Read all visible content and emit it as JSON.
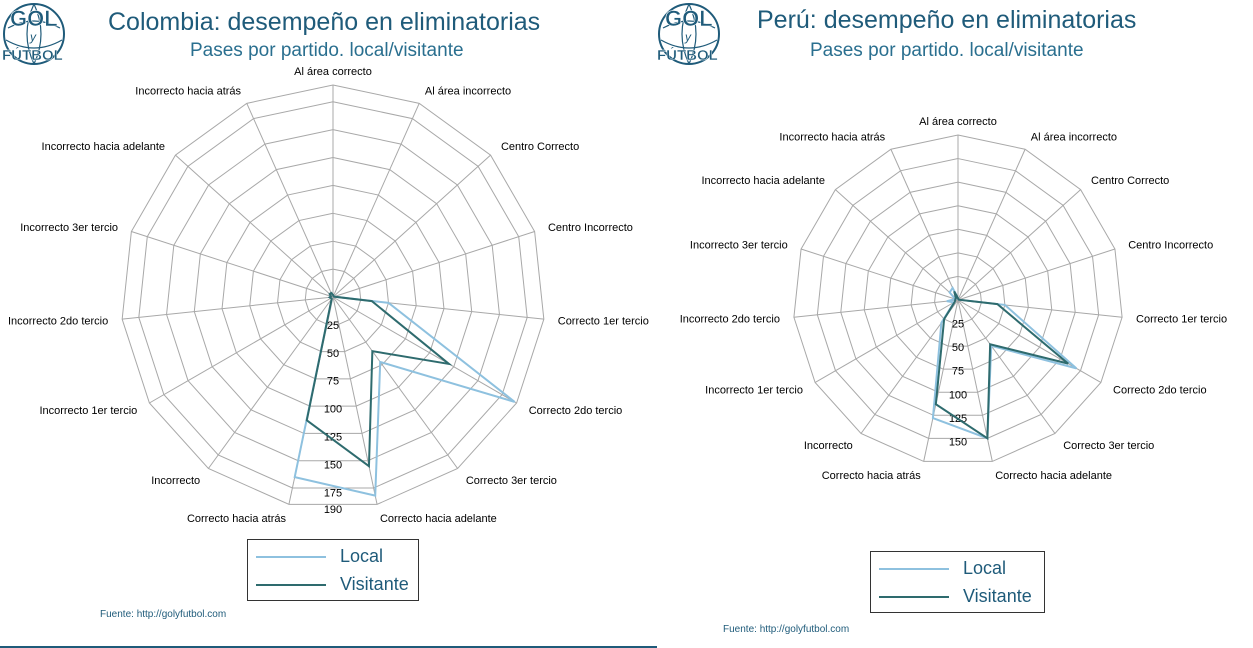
{
  "charts": [
    {
      "title": "Colombia: desempeño en eliminatorias",
      "subtitle": "Pases por partido. local/visitante",
      "logo": {
        "line1": "GOL",
        "line2": "y",
        "line3": "FÚTBOL"
      },
      "legend": [
        "Local",
        "Visitante"
      ],
      "source": "Fuente: http://golyfutbol.com",
      "colors": {
        "local": "#8ec1df",
        "visitante": "#2e6b6e",
        "grid": "#a8a8a8",
        "title": "#1f5b7a"
      }
    },
    {
      "title": "Perú: desempeño en eliminatorias",
      "subtitle": "Pases por partido. local/visitante",
      "logo": {
        "line1": "GOL",
        "line2": "y",
        "line3": "FÚTBOL"
      },
      "legend": [
        "Local",
        "Visitante"
      ],
      "source": "Fuente: http://golyfutbol.com",
      "colors": {
        "local": "#8ec1df",
        "visitante": "#2e6b6e",
        "grid": "#a8a8a8",
        "title": "#1f5b7a"
      }
    }
  ],
  "chart_data": [
    {
      "type": "radar",
      "title": "Colombia: desempeño en eliminatorias",
      "subtitle": "Pases por partido. local/visitante",
      "categories": [
        "Al área correcto",
        "Al área incorrecto",
        "Centro Correcto",
        "Centro Incorrecto",
        "Correcto 1er tercio",
        "Correcto 2do tercio",
        "Correcto 3er tercio",
        "Correcto hacia adelante",
        "Correcto hacia atrás",
        "Incorrecto",
        "Incorrecto 1er tercio",
        "Incorrecto 2do tercio",
        "Incorrecto 3er tercio",
        "Incorrecto hacia adelante",
        "Incorrecto hacia atrás"
      ],
      "ticks": [
        "25",
        "50",
        "75",
        "100",
        "125",
        "150",
        "175",
        "190"
      ],
      "rmax": 190,
      "series": [
        {
          "name": "Local",
          "values": [
            2,
            1,
            1,
            1,
            50,
            188,
            72,
            182,
            165,
            2,
            2,
            3,
            2,
            4,
            4
          ]
        },
        {
          "name": "Visitante",
          "values": [
            2,
            1,
            1,
            1,
            35,
            120,
            60,
            155,
            113,
            2,
            2,
            3,
            2,
            4,
            4
          ]
        }
      ]
    },
    {
      "type": "radar",
      "title": "Perú: desempeño en eliminatorias",
      "subtitle": "Pases por partido. local/visitante",
      "categories": [
        "Al área correcto",
        "Al área incorrecto",
        "Centro Correcto",
        "Centro Incorrecto",
        "Correcto 1er tercio",
        "Correcto 2do tercio",
        "Correcto 3er tercio",
        "Correcto hacia adelante",
        "Correcto hacia atrás",
        "Incorrecto",
        "Incorrecto 1er tercio",
        "Incorrecto 2do tercio",
        "Incorrecto 3er tercio",
        "Incorrecto hacia adelante",
        "Incorrecto hacia atrás"
      ],
      "ticks": [
        "25",
        "50",
        "75",
        "100",
        "125",
        "150"
      ],
      "rmax": 175,
      "series": [
        {
          "name": "Local",
          "values": [
            2,
            1,
            1,
            1,
            50,
            145,
            60,
            150,
            128,
            30,
            5,
            12,
            3,
            12,
            14
          ]
        },
        {
          "name": "Visitante",
          "values": [
            2,
            1,
            1,
            1,
            42,
            135,
            58,
            150,
            113,
            25,
            4,
            3,
            3,
            3,
            10
          ]
        }
      ]
    }
  ]
}
